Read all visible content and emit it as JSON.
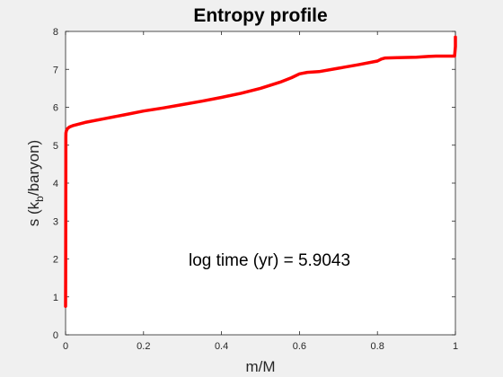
{
  "chart_data": {
    "type": "line",
    "title": "Entropy profile",
    "xlabel": "m/M",
    "ylabel": {
      "prefix": "s (k",
      "subscript": "b",
      "suffix": "/baryon)"
    },
    "xlim": [
      0,
      1
    ],
    "ylim": [
      0,
      8
    ],
    "xticks": [
      "0",
      "0.2",
      "0.4",
      "0.6",
      "0.8",
      "1"
    ],
    "yticks": [
      "0",
      "1",
      "2",
      "3",
      "4",
      "5",
      "6",
      "7",
      "8"
    ],
    "grid": false,
    "annotation": "log time (yr) = 5.9043",
    "series": [
      {
        "color": "#ff0000",
        "x": [
          0.0,
          0.0002,
          0.0004,
          0.0006,
          0.0008,
          0.001,
          0.002,
          0.005,
          0.01,
          0.02,
          0.05,
          0.1,
          0.15,
          0.2,
          0.25,
          0.3,
          0.35,
          0.4,
          0.45,
          0.5,
          0.55,
          0.58,
          0.6,
          0.62,
          0.65,
          0.7,
          0.75,
          0.8,
          0.81,
          0.82,
          0.85,
          0.9,
          0.93,
          0.95,
          0.97,
          0.99,
          0.998,
          1.0,
          1.0
        ],
        "y": [
          0.75,
          1.5,
          3.0,
          4.5,
          5.2,
          5.32,
          5.38,
          5.44,
          5.48,
          5.52,
          5.6,
          5.7,
          5.8,
          5.9,
          5.98,
          6.07,
          6.16,
          6.26,
          6.37,
          6.5,
          6.66,
          6.78,
          6.88,
          6.92,
          6.94,
          7.03,
          7.12,
          7.22,
          7.27,
          7.3,
          7.31,
          7.32,
          7.34,
          7.35,
          7.35,
          7.35,
          7.35,
          7.6,
          7.85
        ]
      }
    ]
  }
}
